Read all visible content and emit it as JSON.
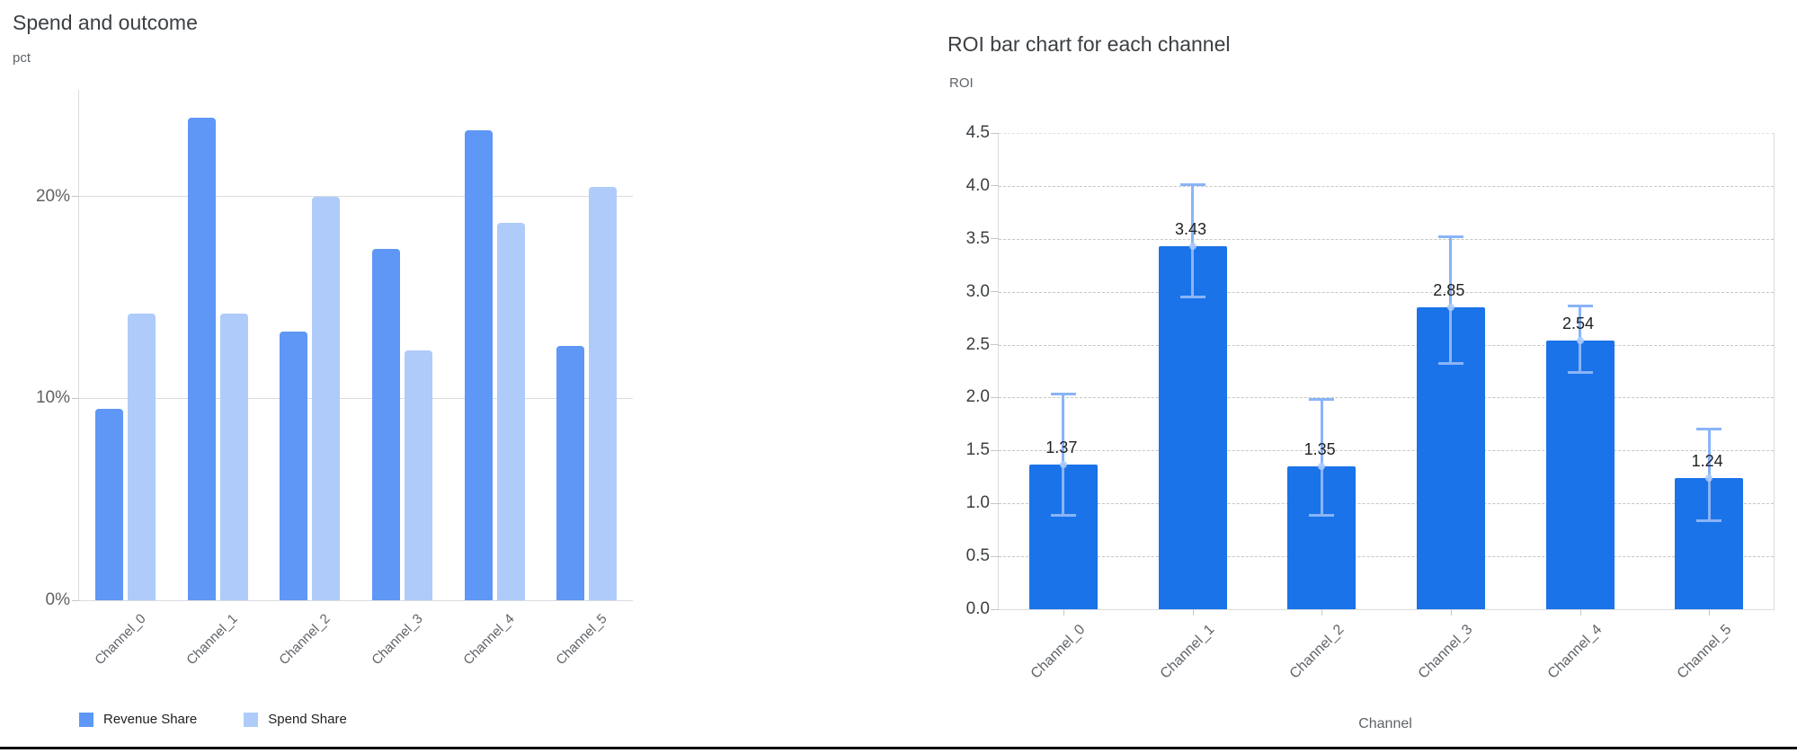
{
  "chart_data": [
    {
      "type": "bar",
      "title": "Spend and outcome",
      "ylabel": "pct",
      "xlabel": "",
      "categories": [
        "Channel_0",
        "Channel_1",
        "Channel_2",
        "Channel_3",
        "Channel_4",
        "Channel_5"
      ],
      "series": [
        {
          "name": "Revenue Share",
          "color": "#5e97f6",
          "values": [
            9.5,
            23.9,
            13.3,
            17.4,
            23.3,
            12.6
          ]
        },
        {
          "name": "Spend Share",
          "color": "#aecbfa",
          "values": [
            14.2,
            14.2,
            20.0,
            12.4,
            18.7,
            20.5
          ]
        }
      ],
      "units": "percent",
      "yticks": [
        {
          "value": 0,
          "label": "0%"
        },
        {
          "value": 10,
          "label": "10%"
        },
        {
          "value": 20,
          "label": "20%"
        }
      ],
      "ylim": [
        0,
        25.3
      ],
      "grid": "horizontal-solid",
      "legend_position": "bottom-left"
    },
    {
      "type": "bar",
      "title": "ROI bar chart for each channel",
      "ylabel": "ROI",
      "xlabel": "Channel",
      "categories": [
        "Channel_0",
        "Channel_1",
        "Channel_2",
        "Channel_3",
        "Channel_4",
        "Channel_5"
      ],
      "values": [
        1.37,
        3.43,
        1.35,
        2.85,
        2.54,
        1.24
      ],
      "error_low": [
        0.88,
        2.95,
        0.88,
        2.32,
        2.23,
        0.83
      ],
      "error_high": [
        2.04,
        4.02,
        1.99,
        3.52,
        2.87,
        1.71
      ],
      "bar_color": "#1a73e8",
      "error_color": "#8ab4f8",
      "error_dot_color": "#aecbfa",
      "ylim": [
        0,
        4.5
      ],
      "ytick_step": 0.5,
      "grid": "horizontal-dashed",
      "legend_position": "none"
    }
  ],
  "divider_color": "#101010"
}
